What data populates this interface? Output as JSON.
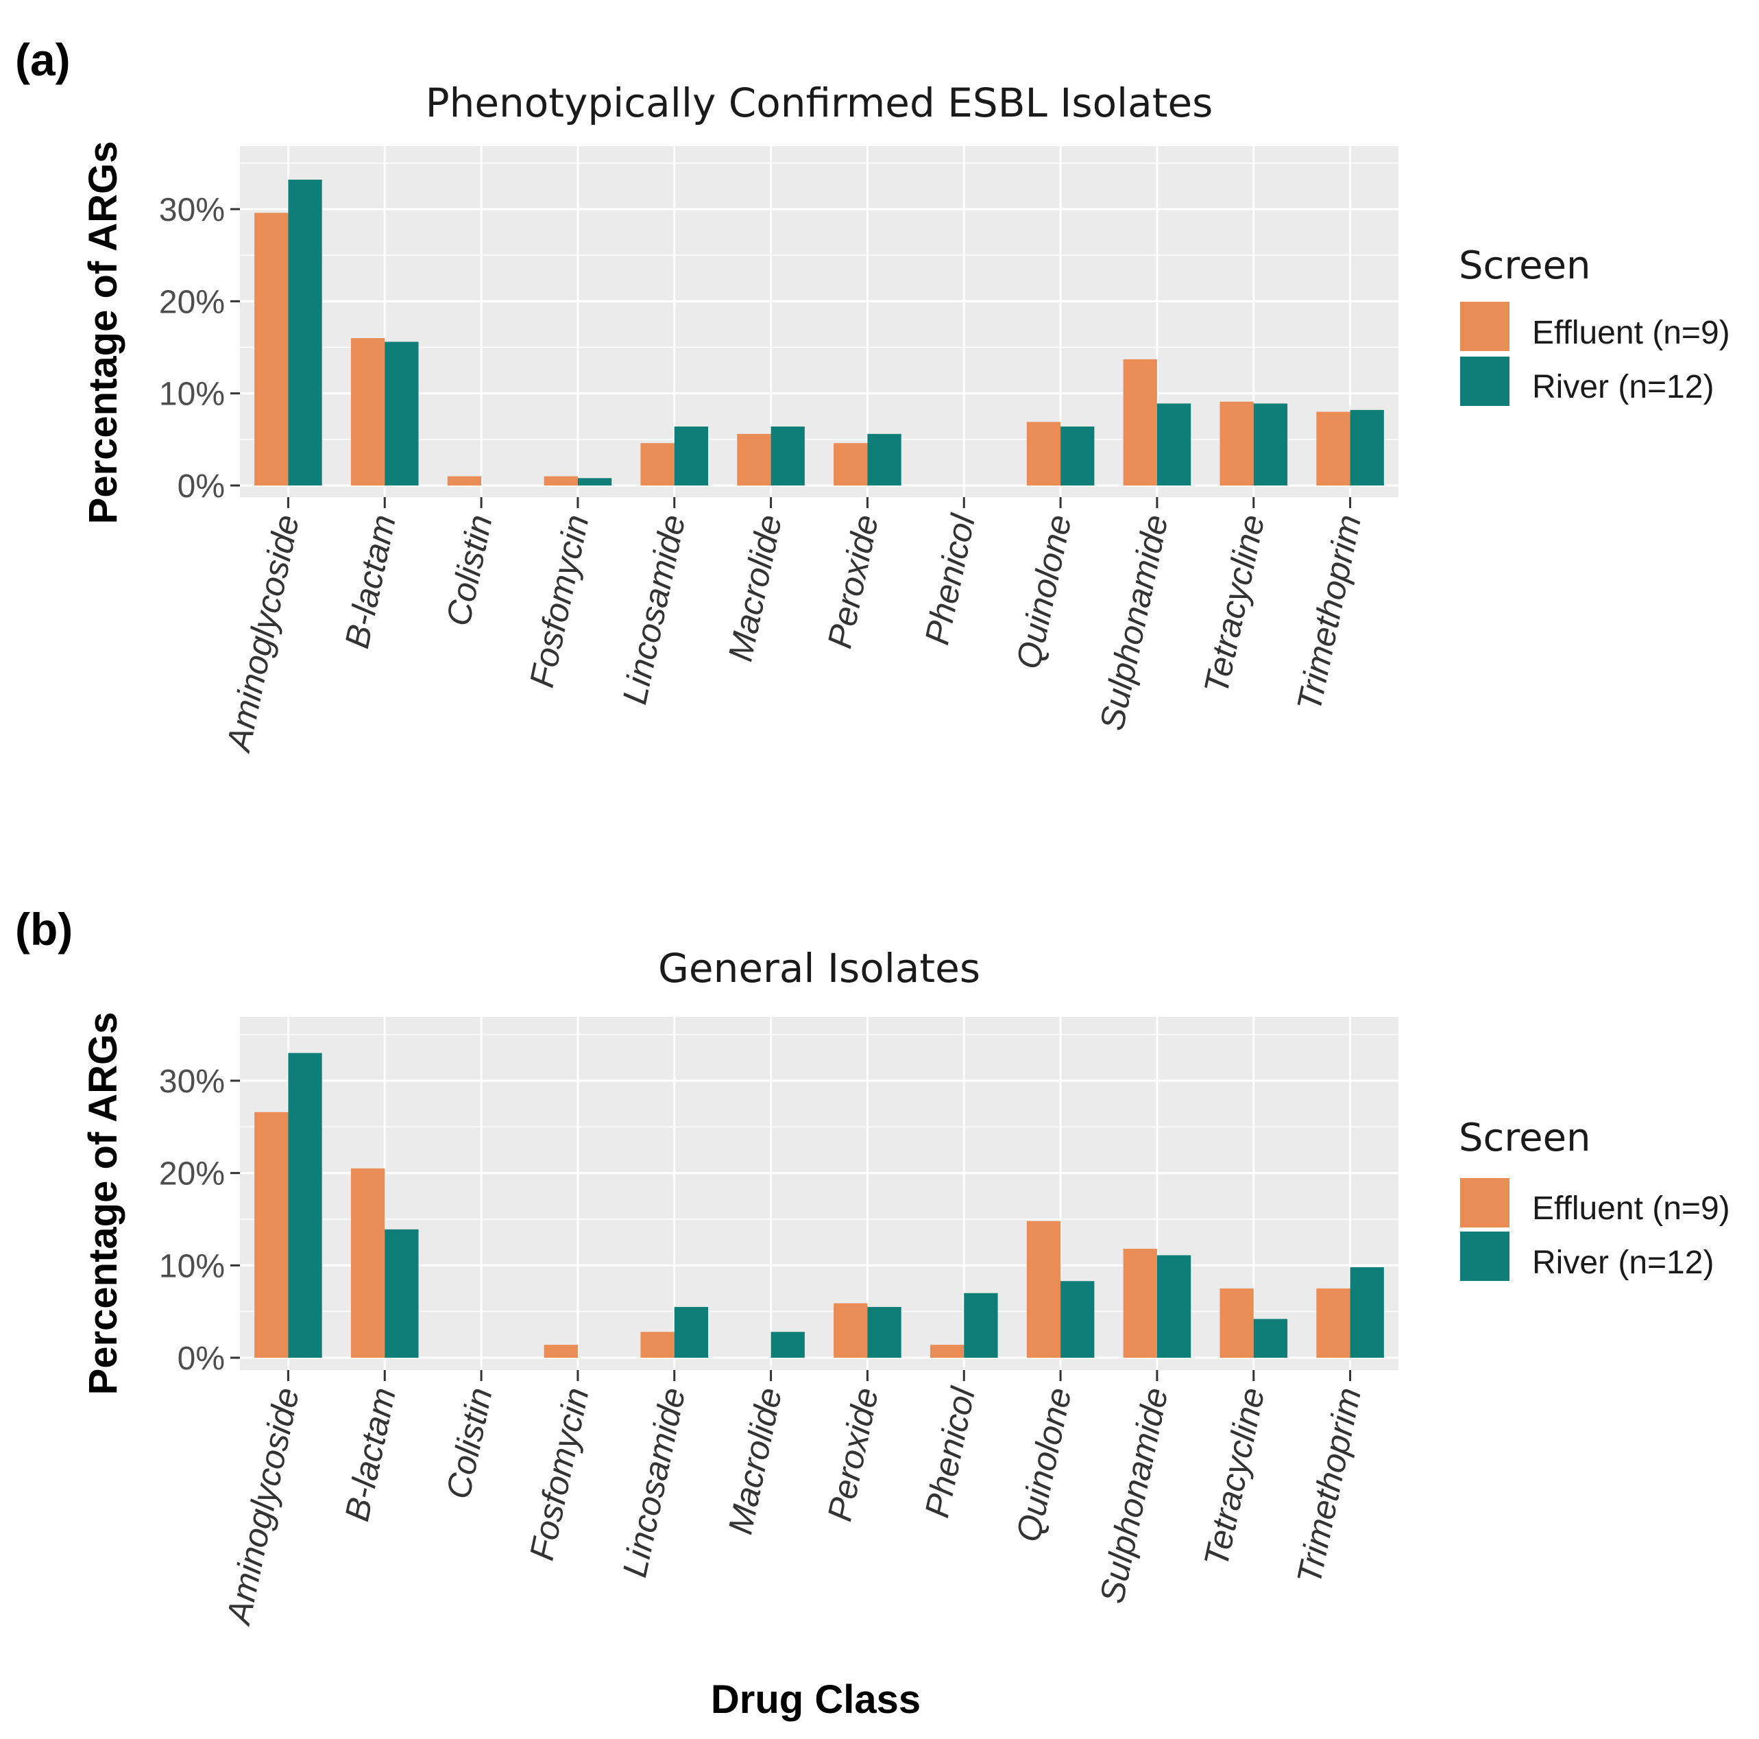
{
  "figure": {
    "panel_labels": [
      "(a)",
      "(b)"
    ],
    "xlabel": "Drug Class",
    "colors": {
      "effluent": "#E98C56",
      "river": "#0F7E78",
      "panel_bg": "#EBEBEB",
      "grid": "#FFFFFF"
    }
  },
  "chart_data": [
    {
      "type": "bar",
      "title": "Phenotypically Confirmed ESBL Isolates",
      "xlabel": "",
      "ylabel": "Percentage of ARGs",
      "ylim": [
        0,
        35
      ],
      "yticks": [
        0,
        10,
        20,
        30
      ],
      "ytick_labels": [
        "0%",
        "10%",
        "20%",
        "30%"
      ],
      "categories": [
        "Aminoglycoside",
        "B-lactam",
        "Colistin",
        "Fosfomycin",
        "Lincosamide",
        "Macrolide",
        "Peroxide",
        "Phenicol",
        "Quinolone",
        "Sulphonamide",
        "Tetracycline",
        "Trimethoprim"
      ],
      "series": [
        {
          "name": "Effluent (n=9)",
          "values": [
            29.6,
            16.0,
            1.0,
            1.0,
            4.6,
            5.6,
            4.6,
            0.0,
            6.9,
            13.7,
            9.1,
            8.0
          ]
        },
        {
          "name": "River (n=12)",
          "values": [
            33.2,
            15.6,
            0.0,
            0.8,
            6.4,
            6.4,
            5.6,
            0.0,
            6.4,
            8.9,
            8.9,
            8.2
          ]
        }
      ],
      "legend": {
        "title": "Screen",
        "position": "right"
      }
    },
    {
      "type": "bar",
      "title": "General Isolates",
      "xlabel": "Drug Class",
      "ylabel": "Percentage of ARGs",
      "ylim": [
        0,
        35
      ],
      "yticks": [
        0,
        10,
        20,
        30
      ],
      "ytick_labels": [
        "0%",
        "10%",
        "20%",
        "30%"
      ],
      "categories": [
        "Aminoglycoside",
        "B-lactam",
        "Colistin",
        "Fosfomycin",
        "Lincosamide",
        "Macrolide",
        "Peroxide",
        "Phenicol",
        "Quinolone",
        "Sulphonamide",
        "Tetracycline",
        "Trimethoprim"
      ],
      "series": [
        {
          "name": "Effluent (n=9)",
          "values": [
            26.6,
            20.5,
            0.0,
            1.4,
            2.8,
            0.0,
            5.9,
            1.4,
            14.8,
            11.8,
            7.5,
            7.5
          ]
        },
        {
          "name": "River (n=12)",
          "values": [
            33.0,
            13.9,
            0.0,
            0.0,
            5.5,
            2.8,
            5.5,
            7.0,
            8.3,
            11.1,
            4.2,
            9.8
          ]
        }
      ],
      "legend": {
        "title": "Screen",
        "position": "right"
      }
    }
  ]
}
